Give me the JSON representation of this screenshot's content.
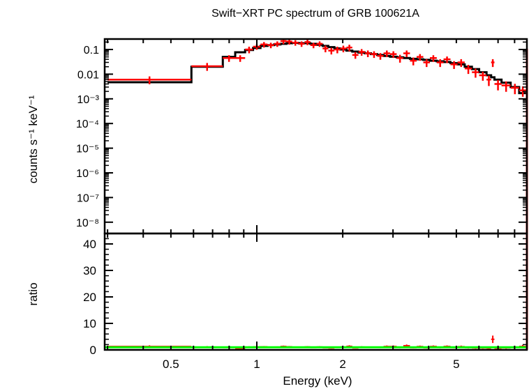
{
  "chart_data": {
    "type": "line",
    "title": "Swift−XRT PC spectrum of GRB 100621A",
    "xlabel": "Energy (keV)",
    "x_scale": "log",
    "xlim": [
      0.3,
      8.8
    ],
    "x_ticks": [
      "0.5",
      "1",
      "2",
      "5"
    ],
    "x_tick_values": [
      0.5,
      1,
      2,
      5
    ],
    "panels": {
      "spectrum": {
        "ylabel": "counts s⁻¹ keV⁻¹",
        "y_scale": "log",
        "ylim": [
          3e-09,
          0.27
        ],
        "y_ticks": [
          "0.1",
          "0.01",
          "10⁻³",
          "10⁻⁴",
          "10⁻⁵",
          "10⁻⁶",
          "10⁻⁷",
          "10⁻⁸"
        ],
        "y_tick_values": [
          0.1,
          0.01,
          0.001,
          0.0001,
          1e-05,
          1e-06,
          1e-07,
          1e-08
        ]
      },
      "ratio": {
        "ylabel": "ratio",
        "y_scale": "linear",
        "ylim": [
          0,
          44
        ],
        "y_ticks": [
          "0",
          "10",
          "20",
          "30",
          "40"
        ],
        "y_tick_values": [
          0,
          10,
          20,
          30,
          40
        ],
        "reference_line": 1
      }
    },
    "colors": {
      "data": "#ff0000",
      "model": "#000000",
      "ratio_reference": "#00ff00"
    },
    "bins": {
      "columns": [
        "e_lo",
        "e_hi",
        "rate",
        "rel_err",
        "model"
      ],
      "rows": [
        [
          0.3,
          0.59,
          0.006,
          0.35,
          0.0047
        ],
        [
          0.59,
          0.76,
          0.021,
          0.35,
          0.02
        ],
        [
          0.76,
          0.84,
          0.045,
          0.3,
          0.05
        ],
        [
          0.84,
          0.91,
          0.045,
          0.3,
          0.077
        ],
        [
          0.91,
          0.97,
          0.1,
          0.3,
          0.095
        ],
        [
          0.97,
          1.03,
          0.13,
          0.25,
          0.115
        ],
        [
          1.03,
          1.09,
          0.16,
          0.25,
          0.14
        ],
        [
          1.09,
          1.15,
          0.15,
          0.25,
          0.15
        ],
        [
          1.15,
          1.21,
          0.17,
          0.25,
          0.16
        ],
        [
          1.21,
          1.27,
          0.22,
          0.25,
          0.17
        ],
        [
          1.27,
          1.33,
          0.21,
          0.25,
          0.18
        ],
        [
          1.33,
          1.4,
          0.19,
          0.25,
          0.185
        ],
        [
          1.4,
          1.47,
          0.17,
          0.25,
          0.18
        ],
        [
          1.47,
          1.54,
          0.2,
          0.25,
          0.18
        ],
        [
          1.54,
          1.62,
          0.15,
          0.25,
          0.17
        ],
        [
          1.62,
          1.7,
          0.17,
          0.25,
          0.155
        ],
        [
          1.7,
          1.78,
          0.11,
          0.3,
          0.14
        ],
        [
          1.78,
          1.87,
          0.09,
          0.3,
          0.125
        ],
        [
          1.87,
          1.96,
          0.1,
          0.3,
          0.11
        ],
        [
          1.96,
          2.06,
          0.11,
          0.3,
          0.1
        ],
        [
          2.06,
          2.16,
          0.12,
          0.3,
          0.09
        ],
        [
          2.16,
          2.27,
          0.06,
          0.3,
          0.082
        ],
        [
          2.27,
          2.39,
          0.08,
          0.3,
          0.075
        ],
        [
          2.39,
          2.51,
          0.07,
          0.3,
          0.07
        ],
        [
          2.51,
          2.64,
          0.065,
          0.3,
          0.065
        ],
        [
          2.64,
          2.78,
          0.055,
          0.3,
          0.06
        ],
        [
          2.78,
          2.93,
          0.07,
          0.3,
          0.055
        ],
        [
          2.93,
          3.09,
          0.065,
          0.3,
          0.051
        ],
        [
          3.09,
          3.26,
          0.045,
          0.35,
          0.048
        ],
        [
          3.26,
          3.44,
          0.07,
          0.3,
          0.045
        ],
        [
          3.44,
          3.63,
          0.035,
          0.35,
          0.042
        ],
        [
          3.63,
          3.83,
          0.05,
          0.3,
          0.04
        ],
        [
          3.83,
          4.04,
          0.03,
          0.35,
          0.038
        ],
        [
          4.04,
          4.27,
          0.045,
          0.3,
          0.035
        ],
        [
          4.27,
          4.51,
          0.03,
          0.35,
          0.033
        ],
        [
          4.51,
          4.77,
          0.04,
          0.3,
          0.031
        ],
        [
          4.77,
          5.05,
          0.025,
          0.35,
          0.028
        ],
        [
          5.05,
          5.35,
          0.03,
          0.35,
          0.025
        ],
        [
          5.35,
          5.67,
          0.017,
          0.4,
          0.02
        ],
        [
          5.67,
          6.01,
          0.012,
          0.4,
          0.016
        ],
        [
          6.01,
          6.38,
          0.009,
          0.4,
          0.012
        ],
        [
          6.38,
          6.62,
          0.006,
          0.45,
          0.009
        ],
        [
          6.62,
          6.8,
          0.03,
          0.35,
          0.0075
        ],
        [
          6.8,
          7.2,
          0.004,
          0.45,
          0.006
        ],
        [
          7.2,
          7.75,
          0.0035,
          0.45,
          0.0045
        ],
        [
          7.75,
          8.3,
          0.0028,
          0.45,
          0.003
        ],
        [
          8.3,
          8.8,
          0.0022,
          0.45,
          0.0017
        ]
      ]
    }
  }
}
